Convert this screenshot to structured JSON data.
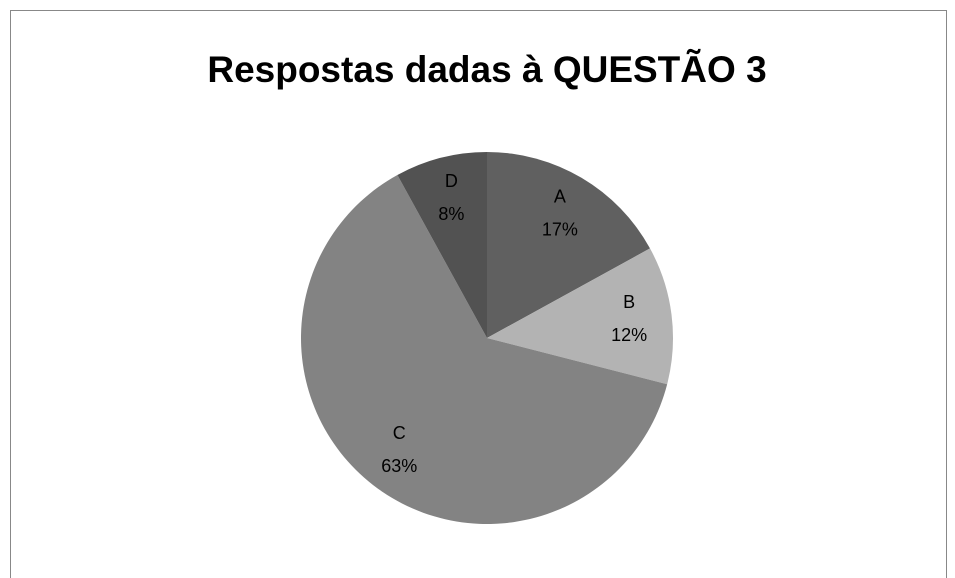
{
  "chart_data": {
    "type": "pie",
    "title": "Respostas dadas à QUESTÃO 3",
    "categories": [
      "A",
      "B",
      "C",
      "D"
    ],
    "values": [
      17,
      12,
      63,
      8
    ],
    "value_labels": [
      "17%",
      "12%",
      "63%",
      "8%"
    ],
    "colors": [
      "#606060",
      "#b3b3b3",
      "#838383",
      "#525252"
    ]
  }
}
